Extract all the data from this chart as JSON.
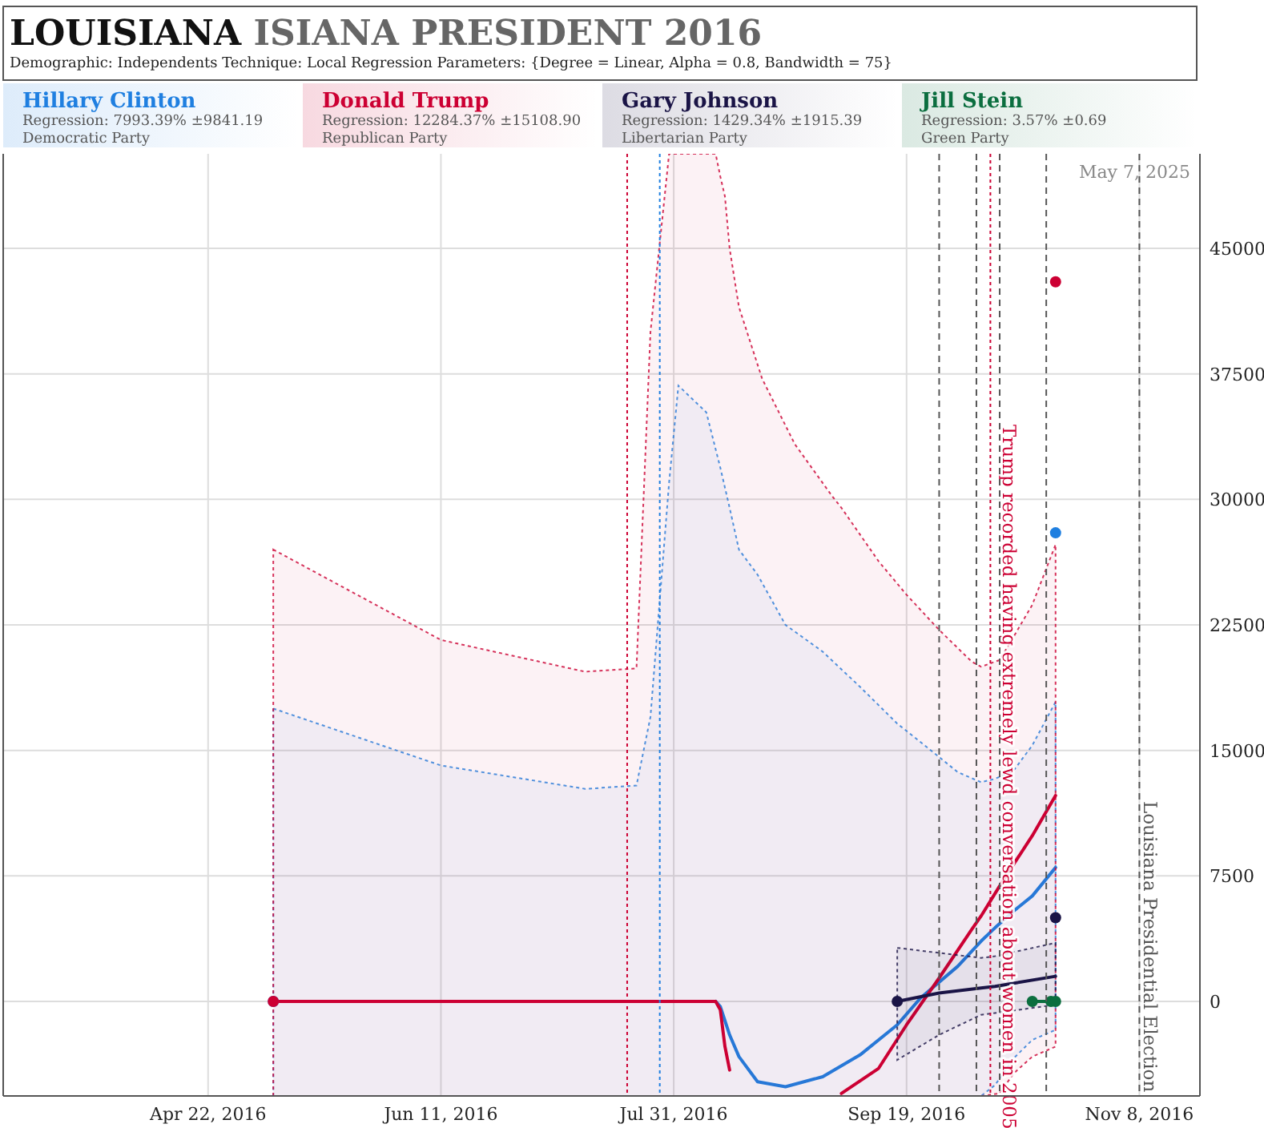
{
  "chart_data": {
    "type": "line",
    "title": "LOUISIANA ISIANA PRESIDENT 2016",
    "subtitle": "Demographic: Independents     Technique: Local Regression     Parameters: {Degree = Linear, Alpha = 0.8, Bandwidth = 75}",
    "xlim": [
      "2016-03-09",
      "2016-11-21"
    ],
    "ylim": [
      -5650,
      50650
    ],
    "xticks": [
      {
        "value": "2016-04-22",
        "label": "Apr 22, 2016"
      },
      {
        "value": "2016-06-11",
        "label": "Jun 11, 2016"
      },
      {
        "value": "2016-07-31",
        "label": "Jul 31, 2016"
      },
      {
        "value": "2016-09-19",
        "label": "Sep 19, 2016"
      },
      {
        "value": "2016-11-08",
        "label": "Nov 8, 2016"
      }
    ],
    "yticks": [
      0,
      7500,
      15000,
      22500,
      30000,
      37500,
      45000
    ],
    "grid": true,
    "legend": "top",
    "line_style": "solid",
    "annotations": [
      "Regression: 7993.39% ±9841.19",
      "Democratic Party",
      "Regression: 12284.37% ±15108.90",
      "Republican Party",
      "Regression: 1429.34% ±1915.39",
      "Libertarian Party",
      "Regression: 3.57% ±0.69",
      "Green Party",
      "May 7, 2025"
    ],
    "ref_lines": [
      {
        "axis": "x",
        "value": "2016-07-21",
        "color": "#cc0033",
        "line_style": "dotted"
      },
      {
        "axis": "x",
        "value": "2016-07-28",
        "color": "#1f7fe0",
        "line_style": "dotted"
      },
      {
        "axis": "x",
        "value": "2016-09-26",
        "color": "#555555",
        "line_style": "dashed"
      },
      {
        "axis": "x",
        "value": "2016-10-04",
        "color": "#555555",
        "line_style": "dashed"
      },
      {
        "axis": "x",
        "value": "2016-10-07",
        "color": "#cc0033",
        "line_style": "dotted",
        "label": "Trump recorded having extremely lewd conversation about women in 2005"
      },
      {
        "axis": "x",
        "value": "2016-10-09",
        "color": "#555555",
        "line_style": "dashed"
      },
      {
        "axis": "x",
        "value": "2016-10-19",
        "color": "#555555",
        "line_style": "dashed"
      },
      {
        "axis": "x",
        "value": "2016-11-08",
        "color": "#555555",
        "line_style": "dashed",
        "label": "Louisiana Presidential Election"
      }
    ],
    "series": [
      {
        "type": "line",
        "name": "Hillary Clinton",
        "color": "#1f7fe0",
        "x": [
          "2016-05-06",
          "2016-06-11",
          "2016-07-12",
          "2016-07-23",
          "2016-07-26",
          "2016-07-30",
          "2016-08-01",
          "2016-08-07",
          "2016-08-09",
          "2016-08-10",
          "2016-08-12",
          "2016-08-14",
          "2016-08-18",
          "2016-08-24",
          "2016-09-01",
          "2016-09-09",
          "2016-09-17",
          "2016-09-22",
          "2016-09-30",
          "2016-10-05",
          "2016-10-08",
          "2016-10-12",
          "2016-10-16",
          "2016-10-21"
        ],
        "values": [
          null,
          null,
          null,
          null,
          null,
          null,
          null,
          null,
          0,
          -300,
          -2000,
          -3300,
          -4800,
          -5100,
          -4500,
          -3200,
          -1400,
          200,
          2100,
          3600,
          4400,
          5400,
          6300,
          8000
        ],
        "upper": [
          17500,
          14100,
          12700,
          12900,
          17000,
          31000,
          36800,
          35200,
          33000,
          31900,
          29500,
          27000,
          25500,
          22500,
          20900,
          18800,
          16600,
          15500,
          13700,
          13100,
          13300,
          13800,
          15300,
          17900
        ],
        "lower": [
          -5650,
          -5650,
          -5650,
          -5650,
          -5650,
          -5650,
          -5650,
          -5650,
          -5650,
          -5650,
          -5650,
          -5650,
          -5650,
          -5650,
          -5650,
          -5650,
          -5650,
          -5650,
          -5650,
          -5650,
          -5000,
          -3400,
          -2300,
          -1700
        ]
      },
      {
        "type": "line",
        "name": "Donald Trump",
        "color": "#cc0033",
        "x": [
          "2016-05-06",
          "2016-06-11",
          "2016-07-12",
          "2016-07-23",
          "2016-07-26",
          "2016-07-30",
          "2016-08-01",
          "2016-08-09",
          "2016-08-10",
          "2016-08-11",
          "2016-08-12",
          "2016-08-14",
          "2016-08-19",
          "2016-08-26",
          "2016-09-03",
          "2016-09-05",
          "2016-09-13",
          "2016-09-19",
          "2016-09-26",
          "2016-10-03",
          "2016-10-05",
          "2016-10-09",
          "2016-10-12",
          "2016-10-16",
          "2016-10-21"
        ],
        "values": [
          0,
          0,
          0,
          0,
          0,
          0,
          0,
          0,
          -500,
          -2700,
          -4100,
          null,
          null,
          null,
          null,
          -5500,
          -4000,
          -1400,
          1400,
          4300,
          5100,
          6900,
          8200,
          9900,
          12300
        ],
        "upper": [
          27000,
          21600,
          19700,
          19900,
          40000,
          50650,
          50650,
          50650,
          49300,
          48100,
          45000,
          41500,
          37200,
          33300,
          30200,
          29500,
          26300,
          24300,
          22200,
          20300,
          20000,
          20400,
          21800,
          23700,
          27300
        ],
        "lower": [
          -5650,
          -5650,
          -5650,
          -5650,
          -5650,
          -5650,
          -5650,
          -5650,
          -5650,
          -5650,
          -5650,
          -5650,
          -5650,
          -5650,
          -5650,
          -5650,
          -5650,
          -5650,
          -5650,
          -5650,
          -5650,
          -5500,
          -4300,
          -3300,
          -2700
        ]
      },
      {
        "type": "line",
        "name": "Gary Johnson",
        "color": "#1a1446",
        "x": [
          "2016-09-17",
          "2016-09-26",
          "2016-10-05",
          "2016-10-08",
          "2016-10-21"
        ],
        "values": [
          0,
          500,
          800,
          900,
          1500
        ],
        "upper": [
          3200,
          2900,
          2600,
          2700,
          3500
        ],
        "lower": [
          -3500,
          -2000,
          -800,
          -700,
          -200
        ]
      },
      {
        "type": "line",
        "name": "Jill Stein",
        "color": "#0b6e3f",
        "x": [
          "2016-10-16",
          "2016-10-20",
          "2016-10-21"
        ],
        "values": [
          0,
          0,
          0
        ]
      },
      {
        "type": "scatter",
        "marker": "circle",
        "color": "#1f7fe0",
        "x": [
          "2016-05-06",
          "2016-10-21"
        ],
        "values": [
          0,
          28000
        ]
      },
      {
        "type": "scatter",
        "marker": "circle",
        "color": "#cc0033",
        "x": [
          "2016-05-06",
          "2016-10-21"
        ],
        "values": [
          0,
          43000
        ]
      },
      {
        "type": "scatter",
        "marker": "circle",
        "color": "#1a1446",
        "x": [
          "2016-09-17",
          "2016-10-21"
        ],
        "values": [
          0,
          5000
        ]
      },
      {
        "type": "scatter",
        "marker": "circle",
        "color": "#0b6e3f",
        "x": [
          "2016-10-16",
          "2016-10-20",
          "2016-10-21"
        ],
        "values": [
          0,
          0,
          0
        ]
      }
    ]
  }
}
